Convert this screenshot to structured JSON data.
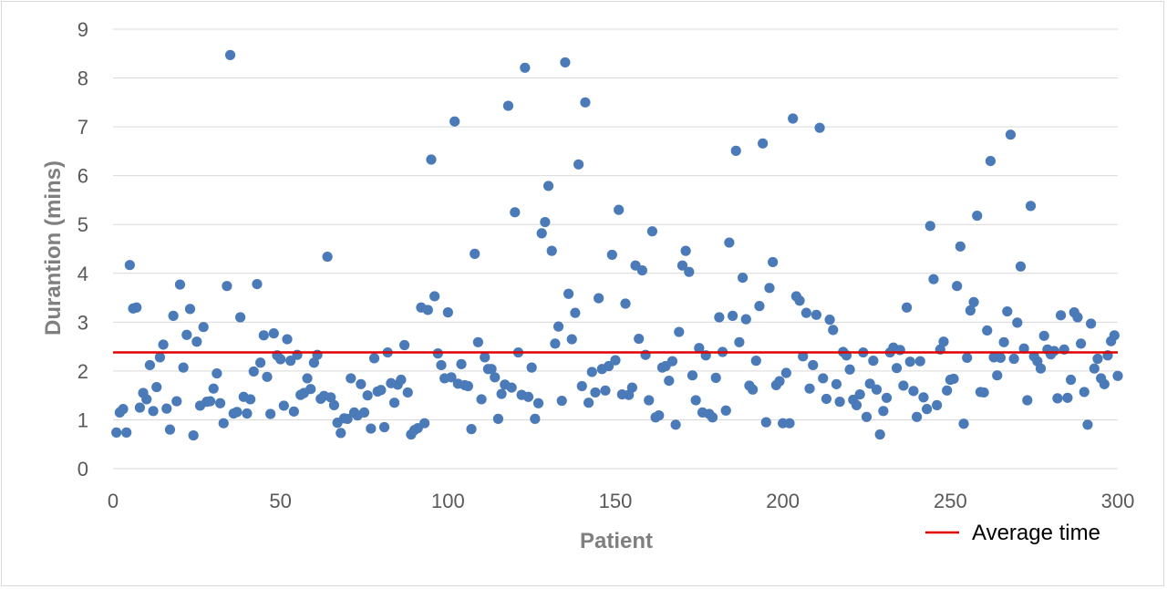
{
  "chart_data": {
    "type": "scatter",
    "xlabel": "Patient",
    "ylabel": "Durantion (mins)",
    "xlim": [
      0,
      300
    ],
    "ylim": [
      0,
      9
    ],
    "x_ticks": [
      "0",
      "50",
      "100",
      "150",
      "200",
      "250",
      "300"
    ],
    "y_ticks": [
      "0",
      "1",
      "2",
      "3",
      "4",
      "5",
      "6",
      "7",
      "8",
      "9"
    ],
    "grid": true,
    "legend_position": "bottom-right",
    "colors": {
      "points": "#4a7ab7",
      "average": "#e00000",
      "grid": "#d9d9d9"
    },
    "series": [
      {
        "values": [
          0.74,
          1.15,
          1.22,
          0.74,
          4.17,
          3.28,
          3.3,
          1.25,
          1.55,
          1.42,
          2.12,
          1.18,
          1.67,
          2.28,
          2.54,
          1.23,
          0.8,
          3.13,
          1.38,
          3.77,
          2.07,
          2.74,
          3.27,
          0.68,
          2.6,
          1.29,
          2.9,
          1.37,
          1.38,
          1.64,
          1.95,
          1.34,
          0.93,
          3.74,
          8.47,
          1.13,
          1.16,
          3.1,
          1.47,
          1.13,
          1.42,
          1.99,
          3.78,
          2.17,
          2.73,
          1.88,
          1.12,
          2.77,
          2.32,
          2.24,
          1.29,
          2.65,
          2.21,
          1.17,
          2.33,
          1.51,
          1.55,
          1.85,
          1.63,
          2.17,
          2.33,
          1.43,
          1.49,
          4.34,
          1.46,
          1.3,
          0.94,
          0.73,
          1.03,
          1.02,
          1.85,
          1.15,
          1.09,
          1.73,
          1.15,
          1.5,
          0.82,
          2.26,
          1.58,
          1.61,
          0.85,
          2.38,
          1.75,
          1.35,
          1.72,
          1.82,
          2.53,
          1.56,
          0.7,
          0.79,
          0.83,
          3.3,
          0.93,
          3.25,
          6.33,
          3.53,
          2.36,
          2.12,
          1.85,
          3.2,
          1.87,
          7.11,
          1.74,
          2.14,
          1.71,
          1.69,
          0.81,
          4.4,
          2.59,
          1.42,
          2.28,
          2.04,
          2.04,
          1.87,
          1.02,
          1.53,
          1.72,
          7.43,
          1.66,
          5.25,
          2.38,
          1.51,
          8.21,
          1.47,
          2.07,
          1.02,
          1.34,
          4.82,
          5.05,
          5.79,
          4.46,
          2.56,
          2.91,
          1.39,
          8.32,
          3.58,
          2.65,
          3.19,
          6.23,
          1.69,
          7.5,
          1.35,
          1.98,
          1.56,
          3.49,
          2.04,
          1.6,
          2.1,
          4.38,
          2.22,
          5.3,
          1.52,
          3.38,
          1.51,
          1.66,
          4.16,
          2.66,
          4.06,
          2.33,
          1.4,
          4.86,
          1.05,
          1.09,
          2.07,
          2.1,
          1.8,
          2.2,
          0.9,
          2.8,
          4.16,
          4.46,
          4.03,
          1.91,
          1.4,
          2.47,
          1.15,
          2.32,
          1.12,
          1.05,
          1.86,
          3.1,
          2.39,
          1.19,
          4.63,
          3.13,
          6.51,
          2.59,
          3.91,
          3.06,
          1.7,
          1.62,
          2.21,
          3.33,
          6.66,
          0.95,
          3.7,
          4.23,
          1.71,
          1.79,
          0.93,
          1.96,
          0.93,
          7.17,
          3.53,
          3.44,
          2.3,
          3.19,
          1.64,
          2.12,
          3.15,
          6.98,
          1.85,
          1.43,
          3.05,
          2.84,
          1.73,
          1.37,
          2.39,
          2.32,
          2.03,
          1.41,
          1.3,
          1.52,
          2.38,
          1.06,
          1.74,
          2.21,
          1.62,
          0.7,
          1.18,
          1.45,
          2.38,
          2.48,
          2.06,
          2.43,
          1.7,
          3.3,
          2.19,
          1.59,
          1.06,
          2.2,
          1.46,
          1.22,
          4.97,
          3.88,
          1.3,
          2.44,
          2.6,
          1.6,
          1.82,
          1.84,
          3.74,
          4.55,
          0.92,
          2.27,
          3.24,
          3.41,
          5.18,
          1.57,
          1.56,
          2.83,
          6.3,
          2.28,
          1.91,
          2.27,
          2.59,
          3.22,
          6.84,
          2.25,
          2.99,
          4.14,
          2.46,
          1.4,
          5.38,
          2.3,
          2.2,
          2.05,
          2.72,
          2.44,
          2.34,
          2.41,
          1.44,
          3.14,
          2.44,
          1.45,
          1.82,
          3.2,
          3.1,
          2.56,
          1.57,
          0.9,
          2.97,
          2.05,
          2.25,
          1.85,
          1.73,
          2.32,
          2.61,
          2.73,
          1.9
        ]
      }
    ],
    "average": {
      "name": "Average time",
      "value": 2.38
    }
  }
}
